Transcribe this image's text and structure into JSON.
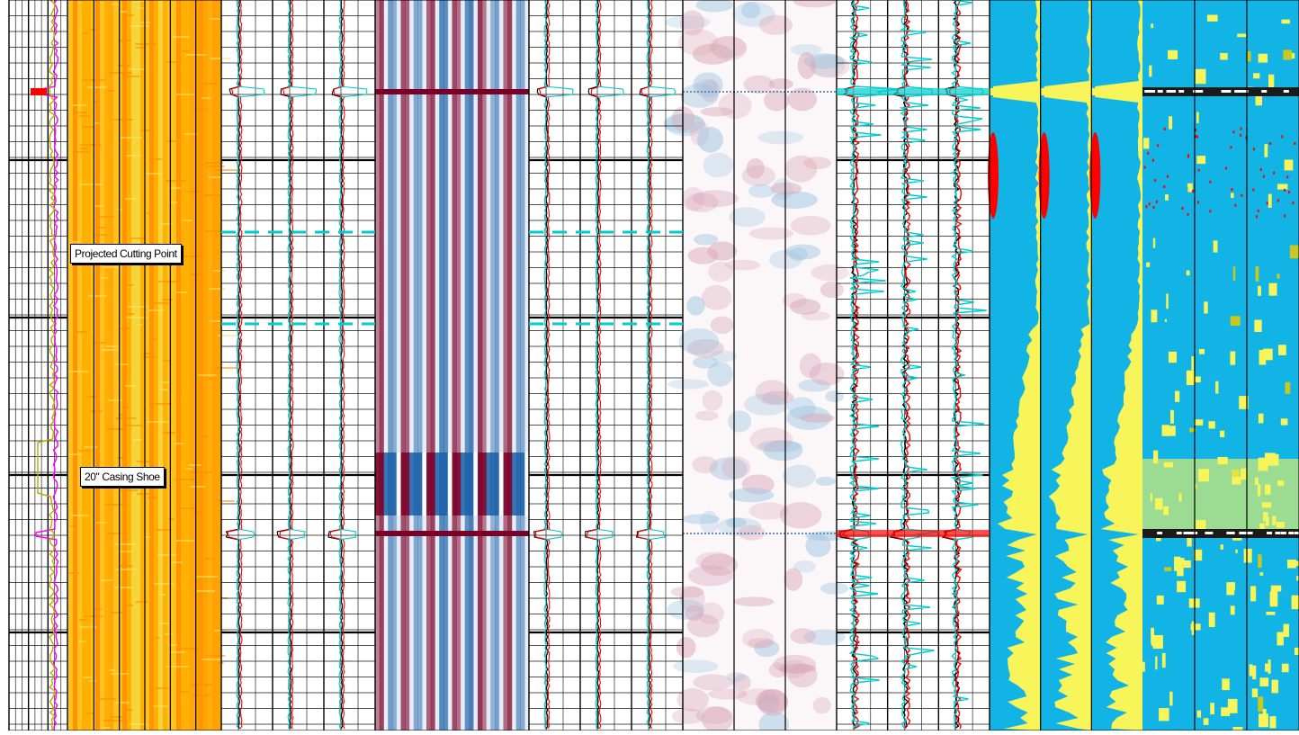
{
  "annotations": {
    "cutting_point": "Projected Cutting Point",
    "casing_shoe": "20\" Casing Shoe"
  },
  "depth_labels": [
    "",
    ""
  ],
  "colors": {
    "grid": "#000000",
    "magenta_curve": "#ff00ff",
    "olive_curve": "#b8b000",
    "red_curve": "#ff0000",
    "cyan_curve": "#00cccc",
    "amplitude_high": "#ff9a00",
    "amplitude_low": "#f7e33a",
    "bipolar_red": "#7a0028",
    "bipolar_blue": "#1a5fa8",
    "fill_blue": "#12b4e6",
    "fill_yellow": "#f7f55a"
  },
  "chart_data": {
    "type": "well-log",
    "tracks": [
      {
        "name": "",
        "kind": "curves"
      },
      {
        "name": "",
        "kind": "amplitude-image"
      },
      {
        "name": "",
        "kind": "waveform-curves"
      },
      {
        "name": "",
        "kind": "bipolar-image"
      },
      {
        "name": "",
        "kind": "waveform-curves"
      },
      {
        "name": "",
        "kind": "bipolar-image-faint"
      },
      {
        "name": "",
        "kind": "waveform-curves-dense"
      },
      {
        "name": "",
        "kind": "fill-log"
      },
      {
        "name": "",
        "kind": "fill-image"
      }
    ],
    "events": [
      {
        "label": "Projected Cutting Point",
        "depth_fraction": 0.125
      },
      {
        "label": "20\" Casing Shoe",
        "depth_fraction": 0.73
      }
    ],
    "grid": true
  }
}
